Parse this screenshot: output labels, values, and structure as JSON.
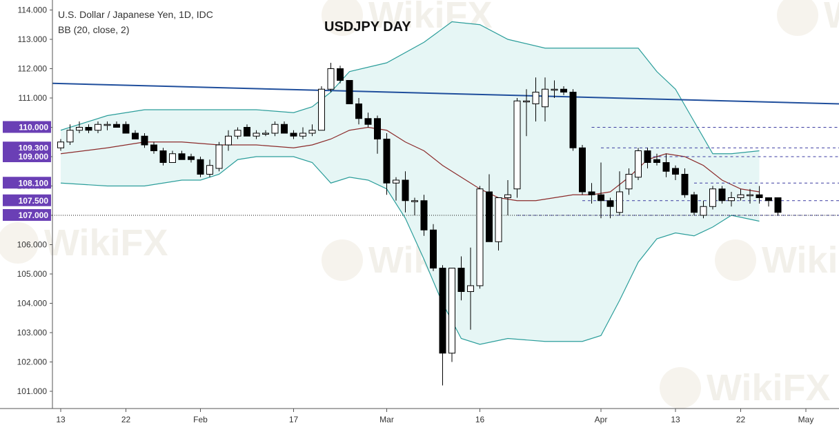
{
  "header": {
    "symbol_line": "U.S. Dollar / Japanese Yen, 1D, IDC",
    "indicator_line": "BB (20, close, 2)",
    "title": "USDJPY DAY"
  },
  "watermark_text": "WikiFX",
  "colors": {
    "up_candle": "#ffffff",
    "down_candle": "#000000",
    "bb_band": "#2a9d9a",
    "bb_fill": "#e6f6f5",
    "bb_basis": "#8b2a2a",
    "trendline": "#1f4e9c",
    "level_dashed": "#3a3aa0",
    "badge": "#6a3fb5"
  },
  "chart_data": {
    "type": "candlestick",
    "title": "USDJPY DAY",
    "y_axis": {
      "ylim": [
        100.5,
        114.3
      ],
      "ticks": [
        "114.000",
        "113.000",
        "112.000",
        "111.000",
        "110.000",
        "109.000",
        "108.000",
        "107.000",
        "106.000",
        "105.000",
        "104.000",
        "103.000",
        "102.000",
        "101.000"
      ]
    },
    "x_axis": {
      "ticks": [
        {
          "label": "13",
          "index": 0
        },
        {
          "label": "22",
          "index": 7
        },
        {
          "label": "Feb",
          "index": 15
        },
        {
          "label": "17",
          "index": 25
        },
        {
          "label": "Mar",
          "index": 35
        },
        {
          "label": "16",
          "index": 45
        },
        {
          "label": "Apr",
          "index": 58
        },
        {
          "label": "13",
          "index": 66
        },
        {
          "label": "22",
          "index": 73
        },
        {
          "label": "May",
          "index": 80
        }
      ]
    },
    "price_labels": [
      {
        "text": "110.000",
        "value": 110.0
      },
      {
        "text": "109.300",
        "value": 109.3
      },
      {
        "text": "109.000",
        "value": 109.0
      },
      {
        "text": "108.100",
        "value": 108.1
      },
      {
        "text": "107.500",
        "value": 107.5
      },
      {
        "text": "107.000",
        "value": 107.0
      }
    ],
    "candles": [
      {
        "o": 109.3,
        "h": 109.6,
        "l": 109.2,
        "c": 109.5
      },
      {
        "o": 109.5,
        "h": 110.1,
        "l": 109.4,
        "c": 109.9
      },
      {
        "o": 109.9,
        "h": 110.2,
        "l": 109.8,
        "c": 110.0
      },
      {
        "o": 110.0,
        "h": 110.1,
        "l": 109.8,
        "c": 109.9
      },
      {
        "o": 109.9,
        "h": 110.2,
        "l": 109.8,
        "c": 110.1
      },
      {
        "o": 110.1,
        "h": 110.2,
        "l": 109.9,
        "c": 110.1
      },
      {
        "o": 110.1,
        "h": 110.2,
        "l": 110.0,
        "c": 110.0
      },
      {
        "o": 110.1,
        "h": 110.2,
        "l": 109.8,
        "c": 109.8
      },
      {
        "o": 109.8,
        "h": 109.9,
        "l": 109.6,
        "c": 109.6
      },
      {
        "o": 109.7,
        "h": 109.8,
        "l": 109.3,
        "c": 109.4
      },
      {
        "o": 109.4,
        "h": 109.5,
        "l": 109.1,
        "c": 109.2
      },
      {
        "o": 109.2,
        "h": 109.3,
        "l": 108.7,
        "c": 108.8
      },
      {
        "o": 108.8,
        "h": 109.2,
        "l": 108.8,
        "c": 109.1
      },
      {
        "o": 109.1,
        "h": 109.2,
        "l": 108.9,
        "c": 108.9
      },
      {
        "o": 109.0,
        "h": 109.1,
        "l": 108.8,
        "c": 108.9
      },
      {
        "o": 108.9,
        "h": 109.0,
        "l": 108.3,
        "c": 108.4
      },
      {
        "o": 108.4,
        "h": 108.9,
        "l": 108.3,
        "c": 108.7
      },
      {
        "o": 108.6,
        "h": 109.5,
        "l": 108.5,
        "c": 109.4
      },
      {
        "o": 109.4,
        "h": 109.9,
        "l": 109.2,
        "c": 109.7
      },
      {
        "o": 109.7,
        "h": 110.0,
        "l": 109.6,
        "c": 109.9
      },
      {
        "o": 110.0,
        "h": 110.1,
        "l": 109.7,
        "c": 109.7
      },
      {
        "o": 109.7,
        "h": 109.9,
        "l": 109.6,
        "c": 109.8
      },
      {
        "o": 109.8,
        "h": 109.9,
        "l": 109.7,
        "c": 109.8
      },
      {
        "o": 109.8,
        "h": 110.2,
        "l": 109.7,
        "c": 110.1
      },
      {
        "o": 110.1,
        "h": 110.2,
        "l": 109.8,
        "c": 109.8
      },
      {
        "o": 109.8,
        "h": 109.9,
        "l": 109.6,
        "c": 109.7
      },
      {
        "o": 109.7,
        "h": 110.0,
        "l": 109.6,
        "c": 109.8
      },
      {
        "o": 109.8,
        "h": 110.1,
        "l": 109.7,
        "c": 109.9
      },
      {
        "o": 109.9,
        "h": 111.4,
        "l": 109.9,
        "c": 111.3
      },
      {
        "o": 111.3,
        "h": 112.2,
        "l": 111.2,
        "c": 112.0
      },
      {
        "o": 112.0,
        "h": 112.1,
        "l": 111.5,
        "c": 111.6
      },
      {
        "o": 111.6,
        "h": 111.6,
        "l": 110.8,
        "c": 110.8
      },
      {
        "o": 110.8,
        "h": 111.0,
        "l": 110.1,
        "c": 110.3
      },
      {
        "o": 110.3,
        "h": 110.5,
        "l": 110.0,
        "c": 110.1
      },
      {
        "o": 110.3,
        "h": 110.4,
        "l": 109.1,
        "c": 109.6
      },
      {
        "o": 109.6,
        "h": 109.8,
        "l": 107.7,
        "c": 108.1
      },
      {
        "o": 108.1,
        "h": 108.3,
        "l": 107.5,
        "c": 108.2
      },
      {
        "o": 108.2,
        "h": 108.5,
        "l": 107.1,
        "c": 107.5
      },
      {
        "o": 107.5,
        "h": 107.6,
        "l": 107.0,
        "c": 107.5
      },
      {
        "o": 107.5,
        "h": 107.7,
        "l": 106.3,
        "c": 106.5
      },
      {
        "o": 106.5,
        "h": 106.7,
        "l": 105.1,
        "c": 105.2
      },
      {
        "o": 105.2,
        "h": 105.3,
        "l": 101.2,
        "c": 102.3
      },
      {
        "o": 102.3,
        "h": 105.2,
        "l": 102.0,
        "c": 105.2
      },
      {
        "o": 105.2,
        "h": 105.6,
        "l": 104.1,
        "c": 104.4
      },
      {
        "o": 104.4,
        "h": 105.9,
        "l": 103.1,
        "c": 104.6
      },
      {
        "o": 104.6,
        "h": 108.0,
        "l": 104.5,
        "c": 107.9
      },
      {
        "o": 107.8,
        "h": 108.4,
        "l": 106.1,
        "c": 106.1
      },
      {
        "o": 106.1,
        "h": 107.6,
        "l": 105.8,
        "c": 107.6
      },
      {
        "o": 107.6,
        "h": 108.2,
        "l": 107.0,
        "c": 107.7
      },
      {
        "o": 107.9,
        "h": 111.0,
        "l": 107.6,
        "c": 110.9
      },
      {
        "o": 110.9,
        "h": 111.3,
        "l": 109.7,
        "c": 110.9
      },
      {
        "o": 110.8,
        "h": 111.7,
        "l": 110.2,
        "c": 111.2
      },
      {
        "o": 110.7,
        "h": 111.7,
        "l": 110.2,
        "c": 111.3
      },
      {
        "o": 111.3,
        "h": 111.6,
        "l": 111.0,
        "c": 111.3
      },
      {
        "o": 111.3,
        "h": 111.4,
        "l": 111.1,
        "c": 111.2
      },
      {
        "o": 111.2,
        "h": 111.3,
        "l": 109.2,
        "c": 109.3
      },
      {
        "o": 109.3,
        "h": 109.4,
        "l": 107.7,
        "c": 107.8
      },
      {
        "o": 107.8,
        "h": 108.1,
        "l": 107.4,
        "c": 107.7
      },
      {
        "o": 107.7,
        "h": 108.8,
        "l": 106.9,
        "c": 107.5
      },
      {
        "o": 107.5,
        "h": 107.6,
        "l": 106.9,
        "c": 107.3
      },
      {
        "o": 107.1,
        "h": 108.5,
        "l": 107.0,
        "c": 107.8
      },
      {
        "o": 107.9,
        "h": 108.6,
        "l": 107.7,
        "c": 108.4
      },
      {
        "o": 108.3,
        "h": 109.3,
        "l": 108.2,
        "c": 109.2
      },
      {
        "o": 109.2,
        "h": 109.3,
        "l": 108.6,
        "c": 108.8
      },
      {
        "o": 108.9,
        "h": 109.1,
        "l": 108.7,
        "c": 108.8
      },
      {
        "o": 108.8,
        "h": 109.1,
        "l": 108.3,
        "c": 108.5
      },
      {
        "o": 108.6,
        "h": 108.7,
        "l": 108.2,
        "c": 108.4
      },
      {
        "o": 108.4,
        "h": 108.6,
        "l": 107.6,
        "c": 107.7
      },
      {
        "o": 107.7,
        "h": 107.8,
        "l": 107.0,
        "c": 107.1
      },
      {
        "o": 107.0,
        "h": 107.5,
        "l": 106.9,
        "c": 107.3
      },
      {
        "o": 107.3,
        "h": 108.0,
        "l": 107.2,
        "c": 107.9
      },
      {
        "o": 107.9,
        "h": 108.0,
        "l": 107.4,
        "c": 107.5
      },
      {
        "o": 107.5,
        "h": 107.8,
        "l": 107.3,
        "c": 107.6
      },
      {
        "o": 107.6,
        "h": 107.9,
        "l": 107.5,
        "c": 107.7
      },
      {
        "o": 107.7,
        "h": 107.9,
        "l": 107.4,
        "c": 107.7
      },
      {
        "o": 107.7,
        "h": 108.0,
        "l": 107.4,
        "c": 107.6
      },
      {
        "o": 107.6,
        "h": 107.6,
        "l": 107.3,
        "c": 107.5
      },
      {
        "o": 107.6,
        "h": 107.6,
        "l": 107.0,
        "c": 107.1
      }
    ],
    "bb_upper": [
      [
        0,
        109.9
      ],
      [
        5,
        110.4
      ],
      [
        9,
        110.6
      ],
      [
        13,
        110.6
      ],
      [
        17,
        110.6
      ],
      [
        21,
        110.6
      ],
      [
        25,
        110.5
      ],
      [
        27,
        110.7
      ],
      [
        29,
        111.2
      ],
      [
        31,
        111.9
      ],
      [
        35,
        112.2
      ],
      [
        39,
        112.9
      ],
      [
        42,
        113.6
      ],
      [
        45,
        113.5
      ],
      [
        48,
        113.0
      ],
      [
        52,
        112.7
      ],
      [
        55,
        112.7
      ],
      [
        58,
        112.7
      ],
      [
        60,
        112.7
      ],
      [
        62,
        112.7
      ],
      [
        64,
        111.9
      ],
      [
        66,
        111.3
      ],
      [
        68,
        110.2
      ],
      [
        70,
        109.1
      ],
      [
        72,
        109.1
      ],
      [
        75,
        109.2
      ]
    ],
    "bb_basis": [
      [
        0,
        109.1
      ],
      [
        5,
        109.3
      ],
      [
        9,
        109.5
      ],
      [
        13,
        109.5
      ],
      [
        17,
        109.4
      ],
      [
        21,
        109.4
      ],
      [
        25,
        109.3
      ],
      [
        27,
        109.4
      ],
      [
        29,
        109.6
      ],
      [
        31,
        109.9
      ],
      [
        33,
        110.0
      ],
      [
        35,
        109.9
      ],
      [
        37,
        109.5
      ],
      [
        39,
        109.2
      ],
      [
        41,
        108.7
      ],
      [
        43,
        108.3
      ],
      [
        45,
        107.9
      ],
      [
        47,
        107.6
      ],
      [
        49,
        107.5
      ],
      [
        51,
        107.5
      ],
      [
        53,
        107.6
      ],
      [
        55,
        107.7
      ],
      [
        57,
        107.7
      ],
      [
        59,
        107.8
      ],
      [
        61,
        108.3
      ],
      [
        63,
        108.9
      ],
      [
        65,
        109.1
      ],
      [
        67,
        109.0
      ],
      [
        69,
        108.7
      ],
      [
        71,
        108.2
      ],
      [
        73,
        107.9
      ],
      [
        75,
        107.8
      ]
    ],
    "bb_lower": [
      [
        0,
        108.1
      ],
      [
        5,
        108.0
      ],
      [
        9,
        108.0
      ],
      [
        13,
        108.2
      ],
      [
        15,
        108.2
      ],
      [
        17,
        108.4
      ],
      [
        19,
        108.9
      ],
      [
        21,
        109.0
      ],
      [
        25,
        109.0
      ],
      [
        27,
        108.8
      ],
      [
        29,
        108.1
      ],
      [
        31,
        108.3
      ],
      [
        33,
        108.2
      ],
      [
        35,
        107.9
      ],
      [
        37,
        106.9
      ],
      [
        39,
        105.5
      ],
      [
        41,
        104.0
      ],
      [
        43,
        102.8
      ],
      [
        45,
        102.6
      ],
      [
        48,
        102.8
      ],
      [
        52,
        102.7
      ],
      [
        56,
        102.7
      ],
      [
        58,
        102.9
      ],
      [
        60,
        104.1
      ],
      [
        62,
        105.4
      ],
      [
        64,
        106.2
      ],
      [
        66,
        106.4
      ],
      [
        68,
        106.3
      ],
      [
        70,
        106.6
      ],
      [
        72,
        107.0
      ],
      [
        75,
        106.8
      ]
    ],
    "trendline": {
      "points": [
        [
          0,
          111.5
        ],
        [
          84,
          110.8
        ]
      ]
    },
    "dashed_levels": [
      {
        "value": 110.0,
        "from": 57,
        "to": 84
      },
      {
        "value": 109.3,
        "from": 58,
        "to": 84
      },
      {
        "value": 109.0,
        "from": 63,
        "to": 84
      },
      {
        "value": 108.1,
        "from": 68,
        "to": 84
      },
      {
        "value": 107.5,
        "from": 56,
        "to": 84
      },
      {
        "value": 107.0,
        "from": 49,
        "to": 84
      }
    ],
    "dotted_current": 107.0,
    "grid": false,
    "legend": "none"
  }
}
